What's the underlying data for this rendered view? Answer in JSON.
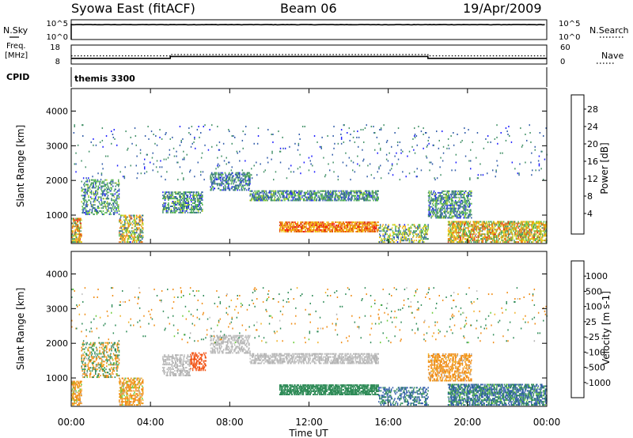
{
  "header": {
    "station": "Syowa East (fitACF)",
    "beam": "Beam 06",
    "date": "19/Apr/2009"
  },
  "labels": {
    "nsky": "N.Sky",
    "nsearch": "N.Search",
    "freq_line1": "Freq.",
    "freq_line2": "[MHz]",
    "nave": "Nave",
    "cpid": "CPID",
    "cpid_value": "themis 3300"
  },
  "noise_ticks": [
    "10^5",
    "10^0"
  ],
  "freq_ticks": [
    "18",
    "8"
  ],
  "nave_ticks": [
    "60",
    "0"
  ],
  "colorbars": {
    "power": {
      "label": "Power [dB]",
      "colors": [
        "#1a1aff",
        "#2e5aa8",
        "#3f8f64",
        "#4eb548",
        "#b7d420",
        "#f2c20a",
        "#f0a010",
        "#ea7010",
        "#e03a10",
        "#ff0000"
      ],
      "tick_labels": [
        "4",
        "8",
        "12",
        "16",
        "20",
        "24",
        "28"
      ]
    },
    "velocity": {
      "label": "Velocity [m s-1]",
      "colors": [
        "#ff1010",
        "#f25010",
        "#f08a10",
        "#f0b020",
        "#c0c0c0",
        "#b0b0b0",
        "#66cc33",
        "#2e8b57",
        "#2e5aa8",
        "#1a1aff"
      ],
      "tick_labels": [
        "-1000",
        "-500",
        "-100",
        "-25",
        "25",
        "100",
        "500",
        "1000"
      ]
    }
  },
  "chart_data": [
    {
      "type": "line",
      "title": "Syowa East (fitACF)   Beam 06   19/Apr/2009",
      "panel": "Noise (N.Sky / N.Search)",
      "x_hours": [
        0,
        24
      ],
      "y_scale": "log",
      "ylim_labels": [
        "10^0",
        "10^5"
      ],
      "series": [
        {
          "name": "N.Sky",
          "style": "solid",
          "x": [
            0,
            6,
            12,
            18,
            24
          ],
          "y": [
            50000,
            50000,
            50000,
            50000,
            50000
          ]
        },
        {
          "name": "N.Search",
          "style": "dotted",
          "x": [
            0,
            24
          ],
          "y": [
            50000,
            50000
          ]
        }
      ]
    },
    {
      "type": "line",
      "panel": "Frequency and Nave",
      "x_hours": [
        0,
        24
      ],
      "ylim_freq": [
        8,
        18
      ],
      "ylim_nave": [
        0,
        60
      ],
      "series": [
        {
          "name": "Freq.",
          "style": "solid",
          "x": [
            0,
            5,
            5,
            18,
            18,
            24
          ],
          "y": [
            11,
            11,
            12,
            12,
            11,
            11
          ]
        },
        {
          "name": "Nave",
          "style": "dotted",
          "x": [
            0,
            5,
            5,
            18,
            18,
            24
          ],
          "y": [
            26,
            26,
            30,
            30,
            26,
            26
          ]
        }
      ]
    },
    {
      "type": "heatmap",
      "panel": "Power",
      "xlabel": "",
      "ylabel": "Slant Range [km]",
      "xlim": [
        0,
        24
      ],
      "ylim": [
        180,
        4650
      ],
      "x_tick_labels": [
        "00:00",
        "04:00",
        "08:00",
        "12:00",
        "16:00",
        "20:00",
        "00:00"
      ],
      "y_tick_labels": [
        "1000",
        "2000",
        "3000",
        "4000"
      ],
      "color_scale": "Power [dB]",
      "regions": [
        {
          "t": [
            0.0,
            0.5
          ],
          "r": [
            200,
            900
          ],
          "v": [
            8,
            28
          ],
          "d": 0.55
        },
        {
          "t": [
            0.5,
            2.4
          ],
          "r": [
            1000,
            2000
          ],
          "v": [
            4,
            14
          ],
          "d": 0.3
        },
        {
          "t": [
            2.4,
            3.6
          ],
          "r": [
            200,
            1000
          ],
          "v": [
            4,
            24
          ],
          "d": 0.45
        },
        {
          "t": [
            4.6,
            6.6
          ],
          "r": [
            1050,
            1650
          ],
          "v": [
            4,
            14
          ],
          "d": 0.45
        },
        {
          "t": [
            7.0,
            9.0
          ],
          "r": [
            1700,
            2200
          ],
          "v": [
            4,
            12
          ],
          "d": 0.4
        },
        {
          "t": [
            9.0,
            15.5
          ],
          "r": [
            1400,
            1700
          ],
          "v": [
            4,
            14
          ],
          "d": 0.5
        },
        {
          "t": [
            10.5,
            15.5
          ],
          "r": [
            500,
            800
          ],
          "v": [
            16,
            28
          ],
          "d": 0.65
        },
        {
          "t": [
            15.5,
            18.0
          ],
          "r": [
            200,
            700
          ],
          "v": [
            4,
            20
          ],
          "d": 0.35
        },
        {
          "t": [
            18.0,
            20.2
          ],
          "r": [
            900,
            1700
          ],
          "v": [
            4,
            14
          ],
          "d": 0.45
        },
        {
          "t": [
            19.0,
            24.0
          ],
          "r": [
            200,
            800
          ],
          "v": [
            8,
            26
          ],
          "d": 0.55
        },
        {
          "t": [
            0.0,
            24.0
          ],
          "r": [
            2000,
            3600
          ],
          "v": [
            4,
            10
          ],
          "d": 0.02
        }
      ]
    },
    {
      "type": "heatmap",
      "panel": "Velocity",
      "xlabel": "Time UT",
      "ylabel": "Slant Range [km]",
      "xlim": [
        0,
        24
      ],
      "ylim": [
        180,
        4650
      ],
      "x_tick_labels": [
        "00:00",
        "04:00",
        "08:00",
        "12:00",
        "16:00",
        "20:00",
        "00:00"
      ],
      "y_tick_labels": [
        "1000",
        "2000",
        "3000",
        "4000"
      ],
      "color_scale": "Velocity [m s-1]",
      "regions": [
        {
          "t": [
            0.0,
            0.5
          ],
          "r": [
            200,
            900
          ],
          "v": [
            -500,
            100
          ],
          "d": 0.55
        },
        {
          "t": [
            0.5,
            2.4
          ],
          "r": [
            1000,
            2000
          ],
          "v": [
            -500,
            500
          ],
          "d": 0.3
        },
        {
          "t": [
            2.4,
            3.6
          ],
          "r": [
            200,
            1000
          ],
          "v": [
            -500,
            100
          ],
          "d": 0.45
        },
        {
          "t": [
            4.6,
            6.0
          ],
          "r": [
            1050,
            1650
          ],
          "v": [
            -25,
            25
          ],
          "d": 0.45
        },
        {
          "t": [
            6.0,
            6.8
          ],
          "r": [
            1200,
            1700
          ],
          "v": [
            -1000,
            -500
          ],
          "d": 0.45
        },
        {
          "t": [
            7.0,
            9.0
          ],
          "r": [
            1700,
            2200
          ],
          "v": [
            -25,
            25
          ],
          "d": 0.4
        },
        {
          "t": [
            9.0,
            15.5
          ],
          "r": [
            1400,
            1700
          ],
          "v": [
            -25,
            25
          ],
          "d": 0.5
        },
        {
          "t": [
            10.5,
            15.5
          ],
          "r": [
            500,
            800
          ],
          "v": [
            100,
            500
          ],
          "d": 0.65
        },
        {
          "t": [
            15.5,
            18.0
          ],
          "r": [
            200,
            700
          ],
          "v": [
            100,
            1000
          ],
          "d": 0.35
        },
        {
          "t": [
            18.0,
            20.2
          ],
          "r": [
            900,
            1700
          ],
          "v": [
            -500,
            25
          ],
          "d": 0.45
        },
        {
          "t": [
            19.0,
            24.0
          ],
          "r": [
            200,
            800
          ],
          "v": [
            25,
            1000
          ],
          "d": 0.55
        },
        {
          "t": [
            0.0,
            24.0
          ],
          "r": [
            2000,
            3600
          ],
          "v": [
            -500,
            500
          ],
          "d": 0.02
        }
      ]
    }
  ]
}
